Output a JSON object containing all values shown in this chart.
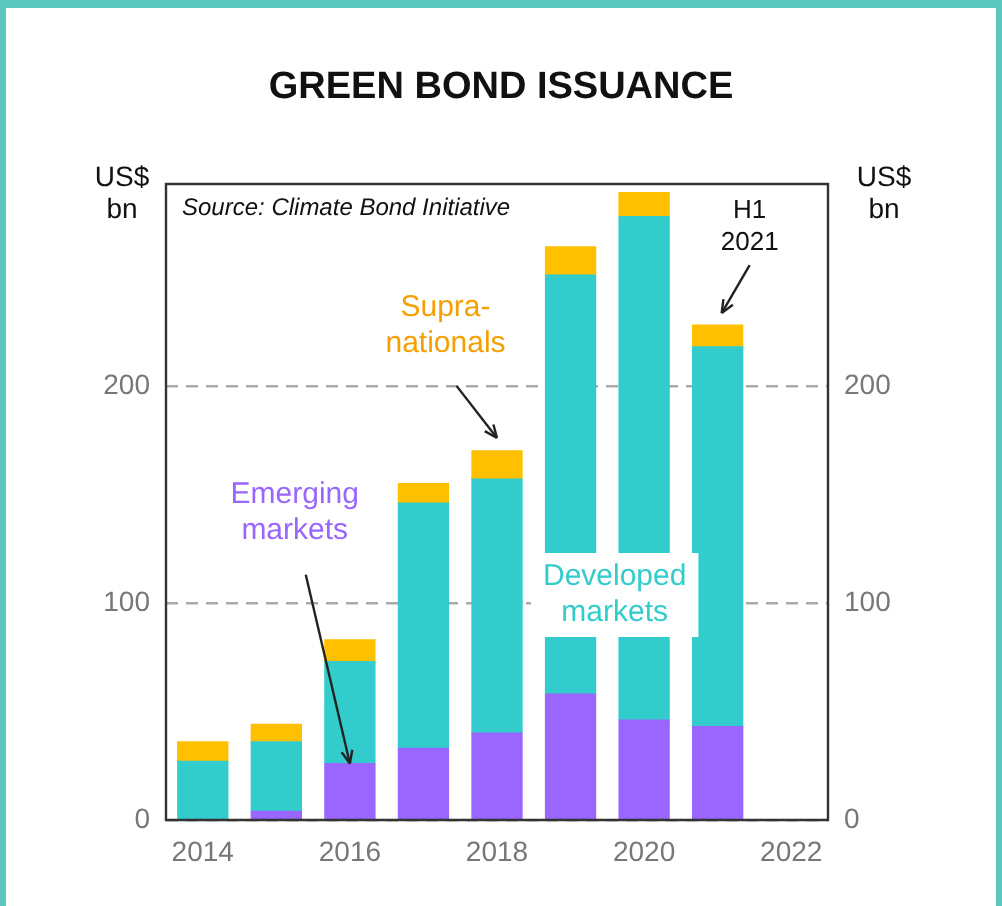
{
  "chart_data": {
    "type": "bar",
    "title": "GREEN BOND ISSUANCE",
    "ylabel": "US$ bn",
    "y2label": "US$ bn",
    "x": [
      2014,
      2015,
      2016,
      2017,
      2018,
      2019,
      2020,
      2021
    ],
    "stacked": true,
    "series": [
      {
        "name": "Emerging markets",
        "color": "#9966ff",
        "values": [
          0,
          4,
          26,
          33,
          40,
          58,
          46,
          43
        ]
      },
      {
        "name": "Developed markets",
        "color": "#33cccc",
        "values": [
          27,
          32,
          47,
          113,
          117,
          193,
          232,
          175
        ]
      },
      {
        "name": "Supra-nationals",
        "color": "#ffc000",
        "values": [
          9,
          8,
          10,
          9,
          13,
          13,
          11,
          10
        ]
      }
    ],
    "xlim": [
      2013.5,
      2022.5
    ],
    "xticks": [
      2014,
      2016,
      2018,
      2020,
      2022
    ],
    "ylim": [
      0,
      293
    ],
    "yticks": [
      0,
      100,
      200
    ],
    "y2lim": [
      0,
      293
    ],
    "y2ticks": [
      0,
      100,
      200
    ],
    "grid": "y",
    "legend": false,
    "annotations": [
      "Source: Climate Bond Initiative",
      {
        "text": "H1 2021",
        "x": 2021,
        "y": 228
      }
    ]
  }
}
